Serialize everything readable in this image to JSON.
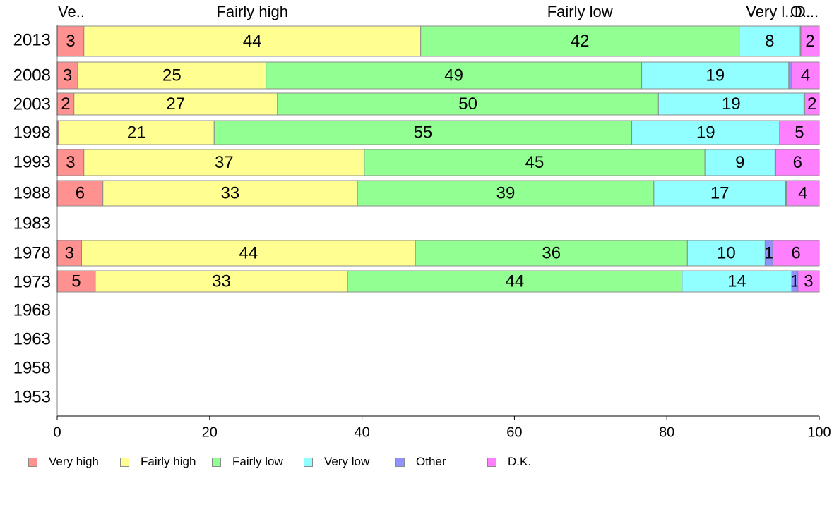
{
  "chart_data": {
    "type": "bar",
    "orientation": "horizontal",
    "stacked": true,
    "categories": [
      "2013",
      "2008",
      "2003",
      "1998",
      "1993",
      "1988",
      "1983",
      "1978",
      "1973",
      "1968",
      "1963",
      "1958",
      "1953"
    ],
    "series": [
      {
        "name": "Very high",
        "color": "#ff9190",
        "values": [
          3.5,
          2.7,
          2.2,
          0.2,
          3.5,
          6.0,
          null,
          3.2,
          5.0,
          null,
          null,
          null,
          null
        ]
      },
      {
        "name": "Fairly high",
        "color": "#ffff91",
        "values": [
          44.2,
          24.7,
          26.7,
          20.4,
          36.8,
          33.4,
          null,
          43.8,
          33.1,
          null,
          null,
          null,
          null
        ]
      },
      {
        "name": "Fairly low",
        "color": "#91ff91",
        "values": [
          41.8,
          49.3,
          50.0,
          54.8,
          44.7,
          38.9,
          null,
          35.7,
          43.9,
          null,
          null,
          null,
          null
        ]
      },
      {
        "name": "Very low",
        "color": "#91ffff",
        "values": [
          8.0,
          19.3,
          19.1,
          19.4,
          9.2,
          17.3,
          null,
          10.2,
          14.4,
          null,
          null,
          null,
          null
        ]
      },
      {
        "name": "Other",
        "color": "#9191ff",
        "values": [
          0.1,
          0.4,
          0.1,
          0.0,
          0.1,
          0.1,
          null,
          1.0,
          0.8,
          null,
          null,
          null,
          null
        ]
      },
      {
        "name": "D.K.",
        "color": "#ff80ff",
        "values": [
          2.4,
          3.6,
          1.9,
          5.2,
          5.7,
          4.3,
          null,
          6.1,
          2.8,
          null,
          null,
          null,
          null
        ]
      }
    ],
    "data_labels": [
      [
        "3",
        "44",
        "42",
        "8",
        "",
        "2"
      ],
      [
        "3",
        "25",
        "49",
        "19",
        "",
        "4"
      ],
      [
        "2",
        "27",
        "50",
        "19",
        "",
        "2"
      ],
      [
        "",
        "21",
        "55",
        "19",
        "",
        "5"
      ],
      [
        "3",
        "37",
        "45",
        "9",
        "",
        "6"
      ],
      [
        "6",
        "33",
        "39",
        "17",
        "",
        "4"
      ],
      [
        "",
        "",
        "",
        "",
        "",
        ""
      ],
      [
        "3",
        "44",
        "36",
        "10",
        "1",
        "6"
      ],
      [
        "5",
        "33",
        "44",
        "14",
        "1",
        "3"
      ],
      [
        "",
        "",
        "",
        "",
        "",
        ""
      ],
      [
        "",
        "",
        "",
        "",
        "",
        ""
      ],
      [
        "",
        "",
        "",
        "",
        "",
        ""
      ],
      [
        "",
        "",
        "",
        "",
        "",
        ""
      ]
    ],
    "top_labels": [
      "Ve..",
      "Fairly high",
      "Fairly low",
      "Very l..",
      "O..",
      "D..."
    ],
    "xlim": [
      0,
      100
    ],
    "xticks": [
      "0",
      "20",
      "40",
      "60",
      "80",
      "100"
    ],
    "grid": false,
    "legend_position": "bottom"
  }
}
